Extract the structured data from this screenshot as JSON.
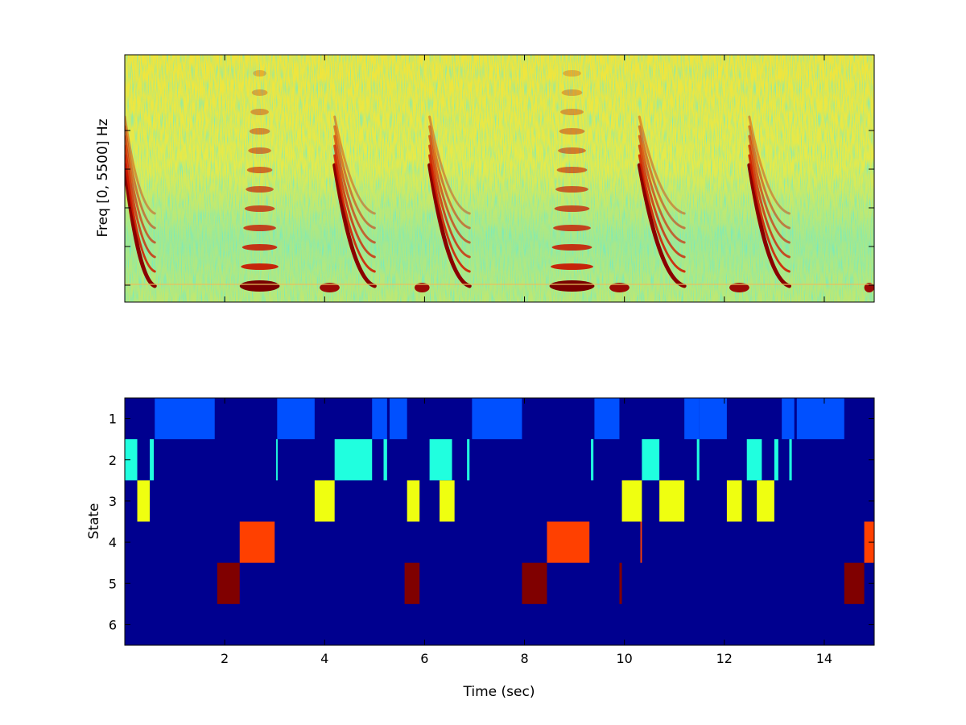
{
  "chart_data": [
    {
      "type": "heatmap",
      "title": "",
      "xlabel": "",
      "ylabel": "Freq [0, 5500] Hz",
      "xlim": [
        0,
        15
      ],
      "colormap": "jet",
      "x_tick_values": [
        2,
        4,
        6,
        8,
        10,
        12,
        14
      ],
      "x_tick_labels_shown": false,
      "description_values": {
        "calls": [
          {
            "start": 0.0,
            "end": 0.6,
            "shape": "downsweep",
            "harmonics": 6
          },
          {
            "start": 2.3,
            "end": 3.1,
            "shape": "stack",
            "harmonics": 12
          },
          {
            "start": 3.9,
            "end": 4.3,
            "shape": "short",
            "harmonics": 1
          },
          {
            "start": 4.2,
            "end": 5.0,
            "shape": "downsweep",
            "harmonics": 6
          },
          {
            "start": 5.8,
            "end": 6.1,
            "shape": "short",
            "harmonics": 1
          },
          {
            "start": 6.1,
            "end": 6.9,
            "shape": "downsweep",
            "harmonics": 6
          },
          {
            "start": 8.5,
            "end": 9.4,
            "shape": "stack",
            "harmonics": 12
          },
          {
            "start": 9.7,
            "end": 10.1,
            "shape": "short",
            "harmonics": 1
          },
          {
            "start": 10.3,
            "end": 11.2,
            "shape": "downsweep",
            "harmonics": 6
          },
          {
            "start": 12.1,
            "end": 12.5,
            "shape": "short",
            "harmonics": 1
          },
          {
            "start": 12.5,
            "end": 13.3,
            "shape": "downsweep",
            "harmonics": 6
          },
          {
            "start": 14.8,
            "end": 15.0,
            "shape": "short",
            "harmonics": 2
          }
        ]
      }
    },
    {
      "type": "heatmap",
      "title": "",
      "xlabel": "Time (sec)",
      "ylabel": "State",
      "xlim": [
        0,
        15
      ],
      "ylim": [
        0.5,
        6.5
      ],
      "y_reversed": true,
      "x_ticks": [
        2,
        4,
        6,
        8,
        10,
        12,
        14
      ],
      "y_ticks": [
        1,
        2,
        3,
        4,
        5,
        6
      ],
      "background_color": "#00008f",
      "state_colors": {
        "1": "#0050ff",
        "2": "#20ffdf",
        "3": "#efff10",
        "4": "#ff4000",
        "5": "#800000"
      },
      "segments": [
        {
          "state": 1,
          "start": 0.6,
          "end": 1.8
        },
        {
          "state": 1,
          "start": 3.05,
          "end": 3.8
        },
        {
          "state": 1,
          "start": 4.95,
          "end": 5.25
        },
        {
          "state": 1,
          "start": 5.3,
          "end": 5.65
        },
        {
          "state": 1,
          "start": 6.95,
          "end": 7.95
        },
        {
          "state": 1,
          "start": 9.4,
          "end": 9.9
        },
        {
          "state": 1,
          "start": 11.2,
          "end": 11.5
        },
        {
          "state": 1,
          "start": 11.5,
          "end": 12.05
        },
        {
          "state": 1,
          "start": 13.15,
          "end": 13.4
        },
        {
          "state": 1,
          "start": 13.45,
          "end": 14.4
        },
        {
          "state": 2,
          "start": 0.0,
          "end": 0.25
        },
        {
          "state": 2,
          "start": 0.5,
          "end": 0.58
        },
        {
          "state": 2,
          "start": 3.03,
          "end": 3.06
        },
        {
          "state": 2,
          "start": 4.2,
          "end": 4.95
        },
        {
          "state": 2,
          "start": 5.18,
          "end": 5.25
        },
        {
          "state": 2,
          "start": 6.1,
          "end": 6.55
        },
        {
          "state": 2,
          "start": 6.85,
          "end": 6.9
        },
        {
          "state": 2,
          "start": 9.33,
          "end": 9.38
        },
        {
          "state": 2,
          "start": 10.35,
          "end": 10.7
        },
        {
          "state": 2,
          "start": 11.45,
          "end": 11.5
        },
        {
          "state": 2,
          "start": 12.45,
          "end": 12.75
        },
        {
          "state": 2,
          "start": 13.0,
          "end": 13.08
        },
        {
          "state": 2,
          "start": 13.3,
          "end": 13.35
        },
        {
          "state": 3,
          "start": 0.25,
          "end": 0.5
        },
        {
          "state": 3,
          "start": 3.8,
          "end": 4.2
        },
        {
          "state": 3,
          "start": 5.65,
          "end": 5.9
        },
        {
          "state": 3,
          "start": 6.3,
          "end": 6.6
        },
        {
          "state": 3,
          "start": 9.95,
          "end": 10.35
        },
        {
          "state": 3,
          "start": 10.7,
          "end": 11.2
        },
        {
          "state": 3,
          "start": 12.05,
          "end": 12.35
        },
        {
          "state": 3,
          "start": 12.65,
          "end": 13.0
        },
        {
          "state": 4,
          "start": 2.3,
          "end": 3.0
        },
        {
          "state": 4,
          "start": 8.45,
          "end": 9.3
        },
        {
          "state": 4,
          "start": 10.32,
          "end": 10.35
        },
        {
          "state": 4,
          "start": 14.8,
          "end": 15.0
        },
        {
          "state": 5,
          "start": 1.85,
          "end": 2.3
        },
        {
          "state": 5,
          "start": 5.6,
          "end": 5.9
        },
        {
          "state": 5,
          "start": 7.95,
          "end": 8.45
        },
        {
          "state": 5,
          "start": 9.9,
          "end": 9.95
        },
        {
          "state": 5,
          "start": 14.4,
          "end": 14.8
        }
      ]
    }
  ]
}
